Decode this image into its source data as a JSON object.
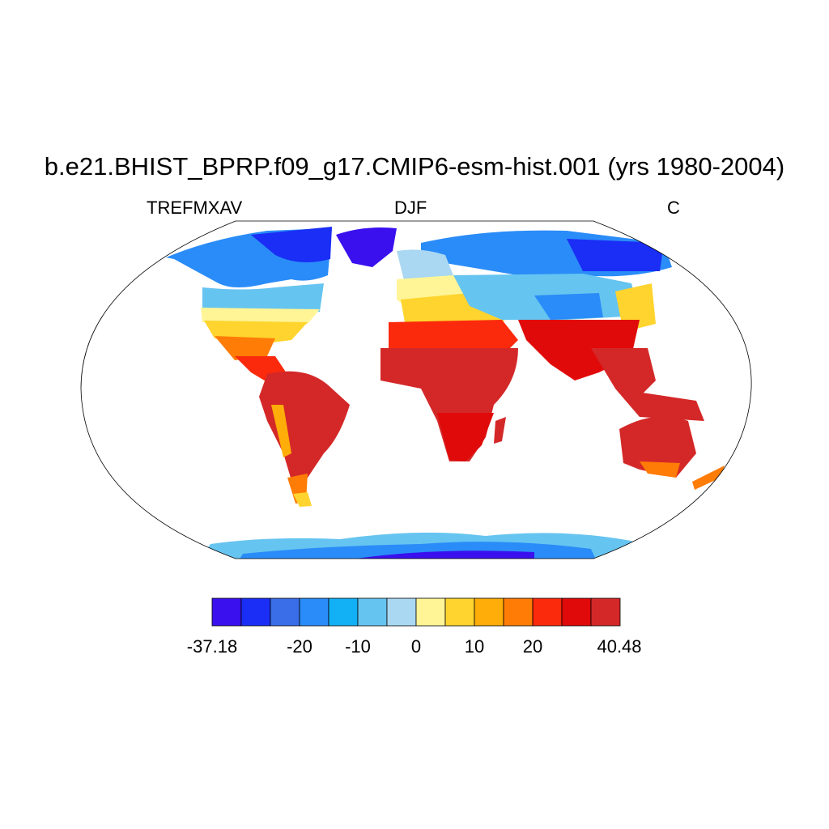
{
  "title": "b.e21.BHIST_BPRP.f09_g17.CMIP6-esm-hist.001 (yrs 1980-2004)",
  "left_string": "TREFMXAV",
  "center_string": "DJF",
  "right_string": "C",
  "colorbar": {
    "min_label": "-37.18",
    "max_label": "40.48",
    "tick_labels": [
      "-20",
      "-10",
      "0",
      "10",
      "20"
    ],
    "colors": [
      "#3a10ee",
      "#1a2ef5",
      "#3a6ee8",
      "#2a8cf8",
      "#12b0f4",
      "#66c4f0",
      "#aad8f2",
      "#fff596",
      "#ffd42e",
      "#ffad08",
      "#ff7c06",
      "#fb2a0c",
      "#e00a0a",
      "#d42828"
    ]
  }
}
